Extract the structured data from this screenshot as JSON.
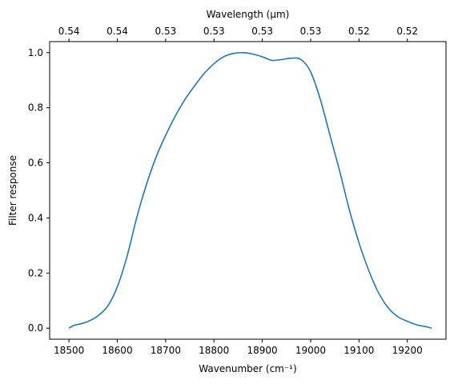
{
  "chart_data": {
    "type": "line",
    "xlabel": "Wavenumber (cm⁻¹)",
    "ylabel": "Filter response",
    "top_xlabel": "Wavelength (μm)",
    "xlim": [
      18460,
      19280
    ],
    "ylim": [
      -0.04,
      1.04
    ],
    "grid": false,
    "x_ticks": [
      18500,
      18600,
      18700,
      18800,
      18900,
      19000,
      19100,
      19200
    ],
    "x_tick_labels": [
      "18500",
      "18600",
      "18700",
      "18800",
      "18900",
      "19000",
      "19100",
      "19200"
    ],
    "y_ticks": [
      0.0,
      0.2,
      0.4,
      0.6,
      0.8,
      1.0
    ],
    "y_tick_labels": [
      "0.0",
      "0.2",
      "0.4",
      "0.6",
      "0.8",
      "1.0"
    ],
    "top_ticks": [
      18500,
      18600,
      18700,
      18800,
      18900,
      19000,
      19100,
      19200
    ],
    "top_tick_labels": [
      "0.54",
      "0.54",
      "0.53",
      "0.53",
      "0.53",
      "0.53",
      "0.52",
      "0.52"
    ],
    "series": [
      {
        "color": "#1f77b4",
        "x": [
          18500,
          18510,
          18520,
          18540,
          18560,
          18580,
          18600,
          18620,
          18640,
          18660,
          18680,
          18700,
          18720,
          18740,
          18760,
          18780,
          18800,
          18820,
          18840,
          18860,
          18880,
          18900,
          18920,
          18940,
          18960,
          18980,
          19000,
          19020,
          19040,
          19060,
          19080,
          19100,
          19120,
          19140,
          19160,
          19180,
          19200,
          19220,
          19240,
          19250
        ],
        "y": [
          0.0,
          0.01,
          0.014,
          0.025,
          0.045,
          0.08,
          0.15,
          0.26,
          0.4,
          0.52,
          0.62,
          0.7,
          0.77,
          0.83,
          0.88,
          0.925,
          0.96,
          0.985,
          0.997,
          1.0,
          0.995,
          0.985,
          0.972,
          0.975,
          0.98,
          0.975,
          0.93,
          0.83,
          0.7,
          0.57,
          0.43,
          0.31,
          0.21,
          0.13,
          0.075,
          0.042,
          0.025,
          0.012,
          0.005,
          0.0
        ]
      }
    ]
  }
}
